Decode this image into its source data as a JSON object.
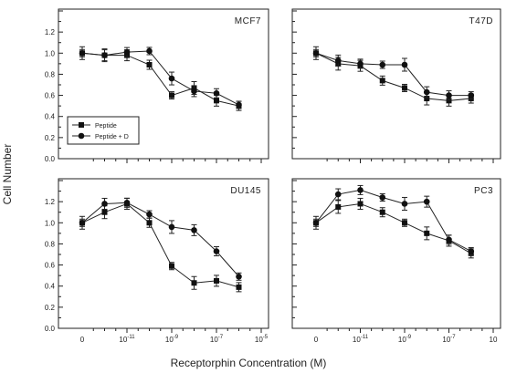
{
  "figure": {
    "ylabel": "Cell Number",
    "xlabel": "Receptorphin Concentration (M)"
  },
  "chart_data": [
    {
      "type": "line",
      "title": "MCF7",
      "ylim": [
        0,
        1.4
      ],
      "yticks": [
        "0.0",
        "0.2",
        "0.4",
        "0.6",
        "0.8",
        "1.0",
        "1.2"
      ],
      "xticks": [],
      "legend": {
        "position": "bottom-left",
        "entries": [
          "Peptide",
          "Peptide + D"
        ]
      },
      "series": [
        {
          "name": "Peptide",
          "marker": "square",
          "x": [
            0,
            1,
            2,
            3,
            4,
            5,
            6,
            7
          ],
          "y": [
            1.0,
            0.98,
            0.98,
            0.89,
            0.6,
            0.67,
            0.55,
            0.5
          ]
        },
        {
          "name": "Peptide + D",
          "marker": "circle",
          "x": [
            0,
            1,
            2,
            3,
            4,
            5,
            6,
            7
          ],
          "y": [
            1.0,
            0.98,
            1.01,
            1.02,
            0.76,
            0.64,
            0.62,
            0.51
          ]
        }
      ]
    },
    {
      "type": "line",
      "title": "T47D",
      "ylim": [
        0,
        1.4
      ],
      "yticks": [],
      "xticks": [],
      "series": [
        {
          "name": "Peptide",
          "marker": "square",
          "x": [
            0,
            1,
            2,
            3,
            4,
            5,
            6,
            7
          ],
          "y": [
            1.0,
            0.9,
            0.88,
            0.74,
            0.67,
            0.57,
            0.55,
            0.57
          ]
        },
        {
          "name": "Peptide + D",
          "marker": "circle",
          "x": [
            0,
            1,
            2,
            3,
            4,
            5,
            6,
            7
          ],
          "y": [
            1.0,
            0.93,
            0.9,
            0.89,
            0.89,
            0.63,
            0.6,
            0.6
          ]
        }
      ]
    },
    {
      "type": "line",
      "title": "DU145",
      "ylim": [
        0,
        1.4
      ],
      "yticks": [
        "0.0",
        "0.2",
        "0.4",
        "0.6",
        "0.8",
        "1.0",
        "1.2"
      ],
      "xticks": [
        {
          "pos": 0,
          "label": "0"
        },
        {
          "pos": 2,
          "label": "10",
          "exp": "-11"
        },
        {
          "pos": 4,
          "label": "10",
          "exp": "-9"
        },
        {
          "pos": 6,
          "label": "10",
          "exp": "-7"
        },
        {
          "pos": 8,
          "label": "10",
          "exp": "-5"
        }
      ],
      "series": [
        {
          "name": "Peptide",
          "marker": "square",
          "x": [
            0,
            1,
            2,
            3,
            4,
            5,
            6,
            7
          ],
          "y": [
            1.0,
            1.1,
            1.18,
            1.0,
            0.59,
            0.43,
            0.45,
            0.39
          ]
        },
        {
          "name": "Peptide + D",
          "marker": "circle",
          "x": [
            0,
            1,
            2,
            3,
            4,
            5,
            6,
            7
          ],
          "y": [
            1.0,
            1.18,
            1.19,
            1.08,
            0.96,
            0.93,
            0.73,
            0.49
          ]
        }
      ]
    },
    {
      "type": "line",
      "title": "PC3",
      "ylim": [
        0,
        1.4
      ],
      "yticks": [],
      "xticks": [
        {
          "pos": 0,
          "label": "0"
        },
        {
          "pos": 2,
          "label": "10",
          "exp": "-11"
        },
        {
          "pos": 4,
          "label": "10",
          "exp": "-9"
        },
        {
          "pos": 6,
          "label": "10",
          "exp": "-7"
        },
        {
          "pos": 8,
          "label": "10",
          "exp": ""
        }
      ],
      "series": [
        {
          "name": "Peptide",
          "marker": "square",
          "x": [
            0,
            1,
            2,
            3,
            4,
            5,
            6,
            7
          ],
          "y": [
            1.0,
            1.15,
            1.18,
            1.1,
            1.0,
            0.9,
            0.83,
            0.71
          ]
        },
        {
          "name": "Peptide + D",
          "marker": "circle",
          "x": [
            0,
            1,
            2,
            3,
            4,
            5,
            6,
            7
          ],
          "y": [
            1.0,
            1.27,
            1.31,
            1.24,
            1.18,
            1.2,
            0.84,
            0.73
          ]
        }
      ]
    }
  ]
}
